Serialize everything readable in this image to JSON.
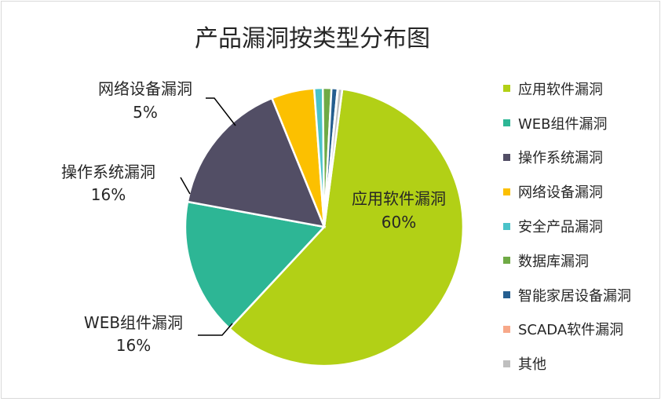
{
  "chart_data": {
    "type": "pie",
    "title": "产品漏洞按类型分布图",
    "series": [
      {
        "name": "应用软件漏洞",
        "value": 60,
        "color": "#b2d016",
        "label": "应用软件漏洞",
        "pct_label": "60%"
      },
      {
        "name": "WEB组件漏洞",
        "value": 16,
        "color": "#2db695",
        "label": "WEB组件漏洞",
        "pct_label": "16%"
      },
      {
        "name": "操作系统漏洞",
        "value": 16,
        "color": "#524e65",
        "label": "操作系统漏洞",
        "pct_label": "16%"
      },
      {
        "name": "网络设备漏洞",
        "value": 5,
        "color": "#fcc000",
        "label": "网络设备漏洞",
        "pct_label": "5%"
      },
      {
        "name": "安全产品漏洞",
        "value": 1,
        "color": "#4bc3c9",
        "label": "",
        "pct_label": ""
      },
      {
        "name": "数据库漏洞",
        "value": 1,
        "color": "#6faa45",
        "label": "",
        "pct_label": ""
      },
      {
        "name": "智能家居设备漏洞",
        "value": 0.7,
        "color": "#255e90",
        "label": "",
        "pct_label": ""
      },
      {
        "name": "SCADA软件漏洞",
        "value": 0.05,
        "color": "#f7a889",
        "label": "",
        "pct_label": ""
      },
      {
        "name": "其他",
        "value": 0.5,
        "color": "#bfbfbf",
        "label": "",
        "pct_label": ""
      }
    ],
    "legend_position": "right"
  }
}
